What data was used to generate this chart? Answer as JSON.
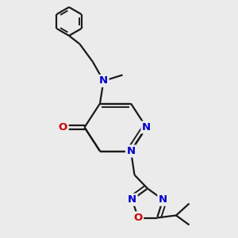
{
  "bg_color": "#ebebeb",
  "bond_color": "#1a1a1a",
  "N_color": "#0000cc",
  "O_color": "#cc0000",
  "lw": 1.6,
  "fs": 9.5,
  "xlim": [
    0,
    10
  ],
  "ylim": [
    0,
    10
  ]
}
